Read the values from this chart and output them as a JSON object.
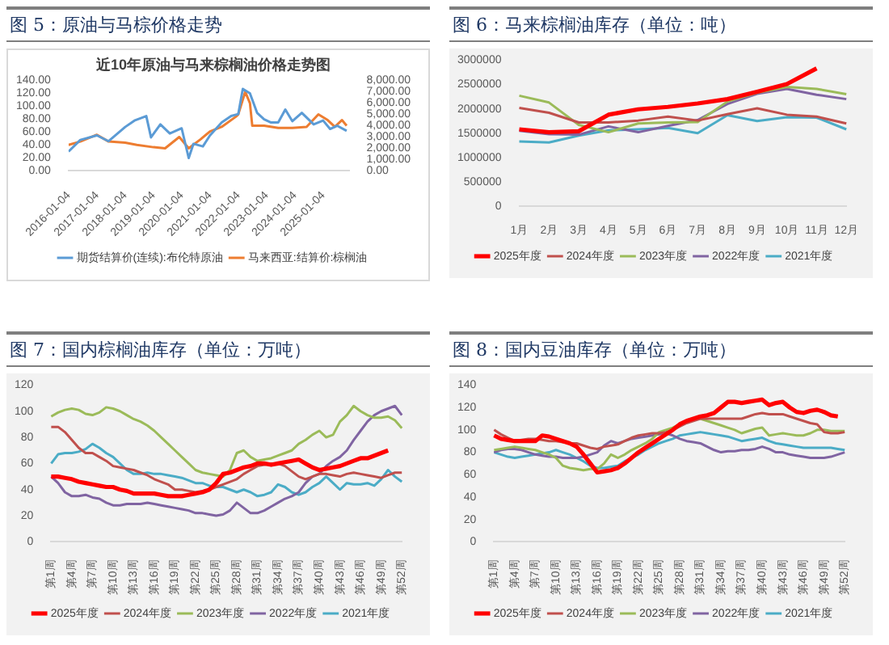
{
  "chart_data": [
    {
      "type": "line",
      "title": "图 5：原油与马棕价格走势",
      "subtitle": "近10年原油与马来棕榈油价格走势图",
      "xlim": [
        "2016-01-01",
        "2025-11-28"
      ],
      "xticks": [
        "2016-01-04",
        "2017-01-04",
        "2018-01-04",
        "2019-01-04",
        "2020-01-04",
        "2021-01-04",
        "2022-01-04",
        "2023-01-04",
        "2024-01-04",
        "2025-01-04"
      ],
      "ylim": [
        0,
        140
      ],
      "yticks": [
        {
          "value": 0,
          "label": "0.00"
        },
        {
          "value": 20,
          "label": "20.00"
        },
        {
          "value": 40,
          "label": "40.00"
        },
        {
          "value": 60,
          "label": "60.00"
        },
        {
          "value": 80,
          "label": "80.00"
        },
        {
          "value": 100,
          "label": "100.00"
        },
        {
          "value": 120,
          "label": "120.00"
        },
        {
          "value": 140,
          "label": "140.00"
        }
      ],
      "y2lim": [
        0,
        8000
      ],
      "y2ticks": [
        {
          "value": 0,
          "label": "0.00"
        },
        {
          "value": 1000,
          "label": "1,000.00"
        },
        {
          "value": 2000,
          "label": "2,000.00"
        },
        {
          "value": 3000,
          "label": "3,000.00"
        },
        {
          "value": 4000,
          "label": "4,000.00"
        },
        {
          "value": 5000,
          "label": "5,000.00"
        },
        {
          "value": 6000,
          "label": "6,000.00"
        },
        {
          "value": 7000,
          "label": "7,000.00"
        },
        {
          "value": 8000,
          "label": "8,000.00"
        }
      ],
      "legend": "bottom",
      "series": [
        {
          "name": "期货结算价(连续):布伦特原油",
          "color": "#5b9bd5",
          "x": [
            "2016-01",
            "2016-06",
            "2017-01",
            "2017-06",
            "2018-01",
            "2018-05",
            "2018-10",
            "2018-12",
            "2019-04",
            "2019-08",
            "2020-01",
            "2020-04",
            "2020-06",
            "2020-10",
            "2021-01",
            "2021-06",
            "2021-10",
            "2022-01",
            "2022-03",
            "2022-06",
            "2022-09",
            "2022-12",
            "2023-03",
            "2023-06",
            "2023-09",
            "2023-12",
            "2024-04",
            "2024-09",
            "2025-01",
            "2025-04",
            "2025-07",
            "2025-11"
          ],
          "values": [
            30,
            48,
            55,
            46,
            68,
            78,
            85,
            52,
            72,
            58,
            66,
            20,
            42,
            38,
            55,
            75,
            85,
            88,
            127,
            120,
            90,
            80,
            75,
            75,
            95,
            77,
            90,
            72,
            78,
            65,
            70,
            62
          ]
        },
        {
          "name": "马来西亚:结算价:棕榈油",
          "color": "#ed7d31",
          "axis": "y2",
          "x": [
            "2016-01",
            "2016-06",
            "2017-01",
            "2017-06",
            "2018-01",
            "2018-06",
            "2019-01",
            "2019-06",
            "2019-12",
            "2020-04",
            "2020-09",
            "2021-01",
            "2021-06",
            "2021-12",
            "2022-01",
            "2022-04",
            "2022-06",
            "2022-07",
            "2022-12",
            "2023-06",
            "2023-12",
            "2024-06",
            "2024-11",
            "2025-03",
            "2025-06",
            "2025-09",
            "2025-11"
          ],
          "values": [
            2300,
            2600,
            3200,
            2600,
            2500,
            2300,
            2100,
            2000,
            3000,
            2000,
            2800,
            3500,
            3900,
            4800,
            5000,
            7000,
            6000,
            4000,
            4000,
            3800,
            3800,
            3900,
            5000,
            4500,
            3900,
            4500,
            4000
          ]
        }
      ]
    },
    {
      "type": "line",
      "title": "图 6：马来棕榈油库存（单位：吨）",
      "categories": [
        "1月",
        "2月",
        "3月",
        "4月",
        "5月",
        "6月",
        "7月",
        "8月",
        "9月",
        "10月",
        "11月",
        "12月"
      ],
      "ylim": [
        0,
        3000000
      ],
      "yticks": [
        0,
        500000,
        1000000,
        1500000,
        2000000,
        2500000,
        3000000
      ],
      "legend": "bottom",
      "series": [
        {
          "name": "2025年度",
          "color": "#ff0000",
          "values": [
            1580000,
            1520000,
            1540000,
            1880000,
            1990000,
            2040000,
            2110000,
            2200000,
            2350000,
            2510000,
            2830000,
            null
          ]
        },
        {
          "name": "2024年度",
          "color": "#c0504d",
          "values": [
            2020000,
            1920000,
            1720000,
            1720000,
            1760000,
            1840000,
            1760000,
            1890000,
            2010000,
            1880000,
            1840000,
            1700000
          ]
        },
        {
          "name": "2023年度",
          "color": "#9bbb59",
          "values": [
            2270000,
            2130000,
            1670000,
            1520000,
            1700000,
            1720000,
            1730000,
            2150000,
            2330000,
            2450000,
            2410000,
            2300000
          ]
        },
        {
          "name": "2022年度",
          "color": "#8064a2",
          "values": [
            1550000,
            1480000,
            1470000,
            1640000,
            1520000,
            1650000,
            1770000,
            2100000,
            2310000,
            2410000,
            2290000,
            2200000
          ]
        },
        {
          "name": "2021年度",
          "color": "#4bacc6",
          "values": [
            1330000,
            1310000,
            1450000,
            1560000,
            1580000,
            1610000,
            1500000,
            1870000,
            1750000,
            1830000,
            1820000,
            1580000
          ]
        }
      ]
    },
    {
      "type": "line",
      "title": "图 7：国内棕榈油库存（单位：万吨）",
      "categories": [
        "第1周",
        null,
        null,
        "第4周",
        null,
        null,
        "第7周",
        null,
        null,
        "第10周",
        null,
        null,
        "第13周",
        null,
        null,
        "第16周",
        null,
        null,
        "第19周",
        null,
        null,
        "第22周",
        null,
        null,
        "第25周",
        null,
        null,
        "第28周",
        null,
        null,
        "第31周",
        null,
        null,
        "第34周",
        null,
        null,
        "第37周",
        null,
        null,
        "第40周",
        null,
        null,
        "第43周",
        null,
        null,
        "第46周",
        null,
        null,
        "第49周",
        null,
        null,
        "第52周"
      ],
      "ylim": [
        0,
        120
      ],
      "yticks": [
        0,
        20,
        40,
        60,
        80,
        100,
        120
      ],
      "legend": "bottom",
      "series": [
        {
          "name": "2025年度",
          "color": "#ff0000",
          "values": [
            50,
            50,
            49,
            48,
            46,
            45,
            44,
            43,
            42,
            42,
            40,
            39,
            37,
            37,
            37,
            37,
            36,
            35,
            35,
            35,
            36,
            37,
            38,
            40,
            45,
            52,
            53,
            55,
            57,
            58,
            60,
            60,
            59,
            60,
            61,
            62,
            63,
            60,
            57,
            55,
            56,
            57,
            58,
            60,
            62,
            64,
            64,
            66,
            68,
            70,
            null,
            null
          ]
        },
        {
          "name": "2024年度",
          "color": "#c0504d",
          "values": [
            88,
            88,
            84,
            78,
            72,
            68,
            68,
            65,
            62,
            58,
            57,
            56,
            55,
            53,
            51,
            48,
            46,
            44,
            40,
            40,
            39,
            38,
            39,
            40,
            42,
            44,
            46,
            48,
            52,
            55,
            58,
            59,
            60,
            60,
            58,
            54,
            50,
            48,
            50,
            52,
            52,
            51,
            50,
            52,
            53,
            52,
            51,
            50,
            49,
            51,
            53,
            53
          ]
        },
        {
          "name": "2023年度",
          "color": "#9bbb59",
          "values": [
            96,
            99,
            101,
            102,
            101,
            98,
            97,
            99,
            103,
            102,
            100,
            97,
            94,
            92,
            89,
            85,
            80,
            75,
            70,
            65,
            60,
            55,
            53,
            52,
            51,
            50,
            55,
            68,
            70,
            65,
            62,
            63,
            64,
            66,
            68,
            70,
            75,
            78,
            82,
            85,
            80,
            82,
            92,
            97,
            104,
            100,
            97,
            95,
            95,
            96,
            93,
            87
          ]
        },
        {
          "name": "2022年度",
          "color": "#8064a2",
          "values": [
            50,
            45,
            38,
            35,
            35,
            36,
            34,
            33,
            30,
            28,
            28,
            29,
            29,
            29,
            30,
            29,
            28,
            27,
            26,
            25,
            24,
            22,
            22,
            21,
            20,
            21,
            24,
            30,
            26,
            22,
            22,
            24,
            27,
            30,
            33,
            35,
            38,
            45,
            50,
            52,
            58,
            62,
            65,
            70,
            78,
            85,
            92,
            97,
            100,
            102,
            104,
            97
          ]
        },
        {
          "name": "2021年度",
          "color": "#4bacc6",
          "values": [
            60,
            67,
            68,
            68,
            69,
            71,
            75,
            72,
            68,
            65,
            60,
            55,
            52,
            52,
            53,
            52,
            52,
            51,
            50,
            49,
            47,
            45,
            45,
            43,
            42,
            42,
            40,
            38,
            40,
            38,
            35,
            36,
            38,
            44,
            42,
            38,
            36,
            38,
            42,
            45,
            50,
            45,
            40,
            45,
            44,
            44,
            45,
            43,
            48,
            55,
            50,
            46
          ]
        }
      ]
    },
    {
      "type": "line",
      "title": "图 8：国内豆油库存（单位：万吨）",
      "categories": [
        "第1周",
        null,
        null,
        "第4周",
        null,
        null,
        "第7周",
        null,
        null,
        "第10周",
        null,
        null,
        "第13周",
        null,
        null,
        "第16周",
        null,
        null,
        "第19周",
        null,
        null,
        "第22周",
        null,
        null,
        "第25周",
        null,
        null,
        "第28周",
        null,
        null,
        "第31周",
        null,
        null,
        "第34周",
        null,
        null,
        "第37周",
        null,
        null,
        "第40周",
        null,
        null,
        "第43周",
        null,
        null,
        "第46周",
        null,
        null,
        "第49周",
        null,
        null,
        "第52周"
      ],
      "ylim": [
        0,
        140
      ],
      "yticks": [
        0,
        20,
        40,
        60,
        80,
        100,
        120,
        140
      ],
      "legend": "bottom",
      "series": [
        {
          "name": "2025年度",
          "color": "#ff0000",
          "values": [
            95,
            92,
            91,
            90,
            90,
            90,
            90,
            95,
            94,
            92,
            90,
            88,
            85,
            78,
            70,
            62,
            63,
            64,
            66,
            70,
            75,
            80,
            84,
            88,
            92,
            96,
            100,
            105,
            108,
            110,
            112,
            113,
            115,
            120,
            125,
            125,
            124,
            125,
            126,
            127,
            122,
            124,
            125,
            120,
            116,
            115,
            117,
            118,
            116,
            113,
            112,
            null
          ]
        },
        {
          "name": "2024年度",
          "color": "#c0504d",
          "values": [
            100,
            96,
            93,
            90,
            91,
            92,
            92,
            91,
            90,
            90,
            89,
            88,
            88,
            86,
            84,
            83,
            85,
            86,
            87,
            90,
            93,
            95,
            96,
            97,
            97,
            98,
            100,
            103,
            106,
            108,
            110,
            110,
            110,
            110,
            110,
            110,
            110,
            112,
            114,
            115,
            114,
            114,
            114,
            112,
            110,
            108,
            106,
            105,
            98,
            97,
            97,
            98
          ]
        },
        {
          "name": "2023年度",
          "color": "#9bbb59",
          "values": [
            82,
            83,
            84,
            85,
            84,
            83,
            82,
            80,
            78,
            75,
            68,
            66,
            65,
            64,
            65,
            65,
            70,
            78,
            75,
            78,
            82,
            85,
            88,
            92,
            98,
            100,
            102,
            105,
            108,
            110,
            110,
            108,
            106,
            104,
            102,
            100,
            97,
            99,
            101,
            102,
            95,
            96,
            97,
            96,
            95,
            95,
            97,
            100,
            100,
            99,
            99,
            99
          ]
        },
        {
          "name": "2022年度",
          "color": "#8064a2",
          "values": [
            80,
            82,
            83,
            83,
            82,
            80,
            78,
            77,
            76,
            76,
            75,
            75,
            75,
            76,
            78,
            80,
            86,
            90,
            88,
            90,
            92,
            93,
            94,
            95,
            96,
            97,
            95,
            92,
            90,
            89,
            88,
            85,
            82,
            80,
            81,
            81,
            82,
            82,
            83,
            85,
            83,
            80,
            80,
            78,
            77,
            76,
            75,
            75,
            75,
            76,
            78,
            80
          ]
        },
        {
          "name": "2021年度",
          "color": "#4bacc6",
          "values": [
            80,
            78,
            76,
            75,
            76,
            77,
            78,
            79,
            80,
            82,
            80,
            78,
            75,
            72,
            68,
            66,
            66,
            67,
            68,
            72,
            75,
            78,
            82,
            85,
            88,
            90,
            92,
            95,
            96,
            97,
            98,
            97,
            96,
            95,
            94,
            92,
            90,
            91,
            92,
            93,
            90,
            88,
            87,
            86,
            85,
            84,
            84,
            84,
            84,
            84,
            83,
            82
          ]
        }
      ]
    }
  ]
}
